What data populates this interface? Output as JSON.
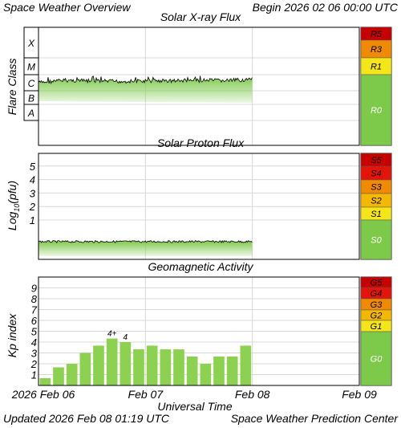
{
  "header": {
    "left_title": "Space Weather Overview",
    "begin_label": "Begin",
    "begin_value": "2026 02 06 00:00 UTC"
  },
  "footer": {
    "updated_label": "Updated",
    "updated_value": "2026 Feb 08 01:19 UTC",
    "org": "Space Weather Prediction Center"
  },
  "colors": {
    "data_fill": "#7dc949",
    "data_line": "#000000",
    "bar_fill": "#8cd150",
    "grid": "#d8d8d8",
    "frame": "#000000",
    "scale_green": "#7dc949",
    "scale_yellow": "#f5e61a",
    "scale_gold": "#f5b800",
    "scale_orange": "#f08a00",
    "scale_red": "#e5140a",
    "scale_darkred": "#c80000"
  },
  "chart_data": [
    {
      "type": "area",
      "title": "Solar X-ray Flux",
      "ylabel": "Flare Class",
      "y_scale": "log",
      "y_classes": [
        "A",
        "B",
        "C",
        "M",
        "X"
      ],
      "x_range": [
        "2026-02-06",
        "2026-02-09"
      ],
      "x_ticks": [
        "Feb 06",
        "Feb 07",
        "Feb 08",
        "Feb 09"
      ],
      "grid": true,
      "series": [
        {
          "x": [
            "2026-02-06 00:00",
            "2026-02-06 06:00",
            "2026-02-06 12:00",
            "2026-02-06 18:00",
            "2026-02-07 00:00",
            "2026-02-07 06:00",
            "2026-02-07 12:00",
            "2026-02-07 18:00",
            "2026-02-08 00:00"
          ],
          "values": [
            3.2e-06,
            4.5e-06,
            4e-06,
            3.8e-06,
            4e-06,
            4.2e-06,
            4.4e-06,
            4.3e-06,
            5e-06
          ]
        }
      ],
      "scale_labels": [
        {
          "label": "R5",
          "color": "#c80000"
        },
        {
          "label": "R3",
          "color": "#f08a00"
        },
        {
          "label": "R1",
          "color": "#f5e61a"
        },
        {
          "label": "R0",
          "color": "#7dc949"
        }
      ]
    },
    {
      "type": "area",
      "title": "Solar Proton Flux",
      "ylabel": "Log10(pfu)",
      "y_ticks": [
        1,
        2,
        3,
        4,
        5
      ],
      "x_range": [
        "2026-02-06",
        "2026-02-09"
      ],
      "grid": true,
      "series": [
        {
          "x": [
            "2026-02-06 00:00",
            "2026-02-06 12:00",
            "2026-02-07 00:00",
            "2026-02-07 12:00",
            "2026-02-08 00:00"
          ],
          "values": [
            -0.6,
            -0.6,
            -0.55,
            -0.6,
            -0.55
          ]
        }
      ],
      "scale_labels": [
        {
          "label": "S5",
          "color": "#c80000"
        },
        {
          "label": "S4",
          "color": "#e5140a"
        },
        {
          "label": "S3",
          "color": "#f08a00"
        },
        {
          "label": "S2",
          "color": "#f5b800"
        },
        {
          "label": "S1",
          "color": "#f5e61a"
        },
        {
          "label": "S0",
          "color": "#7dc949"
        }
      ]
    },
    {
      "type": "bar",
      "title": "Geomagnetic Activity",
      "ylabel": "Kp index",
      "xlabel": "Universal Time",
      "y_ticks": [
        1,
        2,
        3,
        4,
        5,
        6,
        7,
        8,
        9
      ],
      "ylim": [
        0,
        10
      ],
      "x_range": [
        "2026-02-06",
        "2026-02-09"
      ],
      "x_ticks": [
        "2026 Feb 06",
        "Feb 07",
        "Feb 08",
        "Feb 09"
      ],
      "grid": true,
      "bars": [
        {
          "start": "2026-02-06 00:00",
          "value": 0.67,
          "label": ""
        },
        {
          "start": "2026-02-06 03:00",
          "value": 1.67,
          "label": ""
        },
        {
          "start": "2026-02-06 06:00",
          "value": 2.0,
          "label": ""
        },
        {
          "start": "2026-02-06 09:00",
          "value": 3.0,
          "label": ""
        },
        {
          "start": "2026-02-06 12:00",
          "value": 3.67,
          "label": ""
        },
        {
          "start": "2026-02-06 15:00",
          "value": 4.33,
          "label": "4+"
        },
        {
          "start": "2026-02-06 18:00",
          "value": 4.0,
          "label": "4"
        },
        {
          "start": "2026-02-06 21:00",
          "value": 3.33,
          "label": ""
        },
        {
          "start": "2026-02-07 00:00",
          "value": 3.67,
          "label": ""
        },
        {
          "start": "2026-02-07 03:00",
          "value": 3.33,
          "label": ""
        },
        {
          "start": "2026-02-07 06:00",
          "value": 3.33,
          "label": ""
        },
        {
          "start": "2026-02-07 09:00",
          "value": 2.67,
          "label": ""
        },
        {
          "start": "2026-02-07 12:00",
          "value": 2.0,
          "label": ""
        },
        {
          "start": "2026-02-07 15:00",
          "value": 2.67,
          "label": ""
        },
        {
          "start": "2026-02-07 18:00",
          "value": 2.67,
          "label": ""
        },
        {
          "start": "2026-02-07 21:00",
          "value": 3.67,
          "label": ""
        }
      ],
      "scale_labels": [
        {
          "label": "G5",
          "color": "#c80000"
        },
        {
          "label": "G4",
          "color": "#e5140a"
        },
        {
          "label": "G3",
          "color": "#f08a00"
        },
        {
          "label": "G2",
          "color": "#f5b800"
        },
        {
          "label": "G1",
          "color": "#f5e61a"
        },
        {
          "label": "G0",
          "color": "#7dc949"
        }
      ]
    }
  ]
}
